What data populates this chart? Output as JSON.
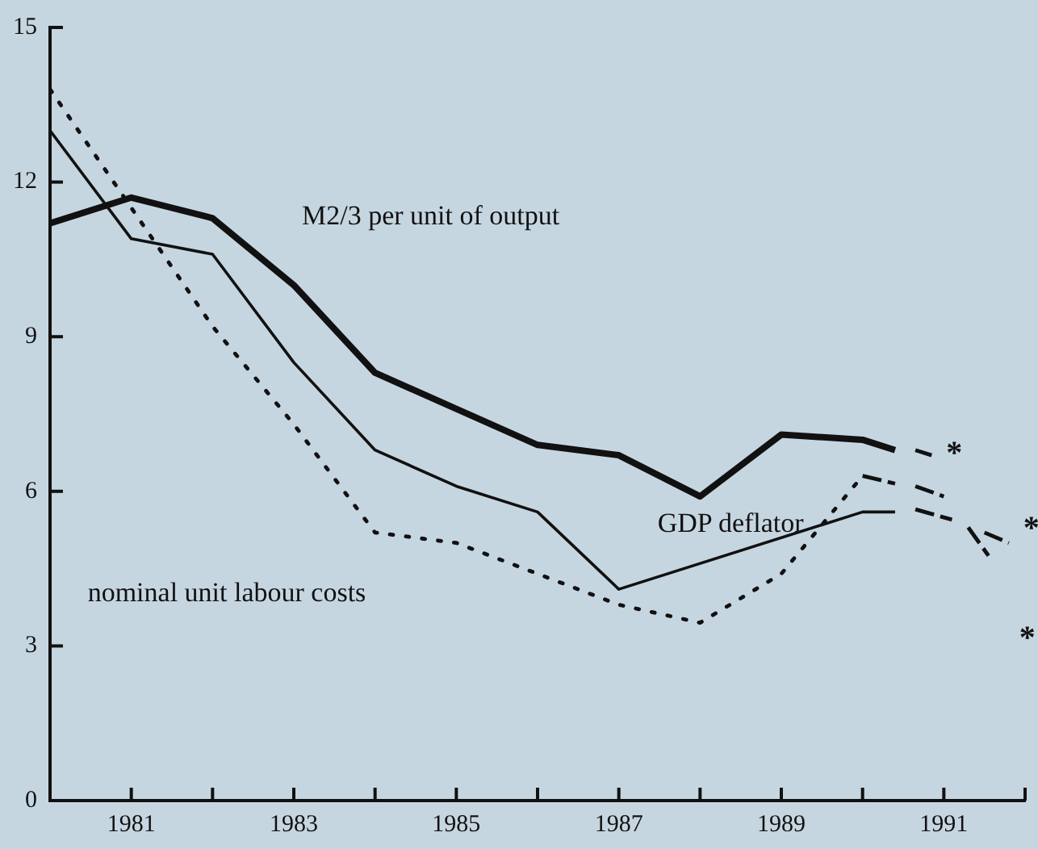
{
  "chart_data": {
    "type": "line",
    "xlim": [
      1980,
      1992
    ],
    "xticks": [
      {
        "value": 1981,
        "label": "1981"
      },
      {
        "value": 1982,
        "label": null
      },
      {
        "value": 1983,
        "label": "1983"
      },
      {
        "value": 1984,
        "label": null
      },
      {
        "value": 1985,
        "label": "1985"
      },
      {
        "value": 1986,
        "label": null
      },
      {
        "value": 1987,
        "label": "1987"
      },
      {
        "value": 1988,
        "label": null
      },
      {
        "value": 1989,
        "label": "1989"
      },
      {
        "value": 1990,
        "label": null
      },
      {
        "value": 1991,
        "label": "1991"
      },
      {
        "value": 1992,
        "label": null
      }
    ],
    "ylim": [
      0,
      15
    ],
    "yticks": [
      0,
      3,
      6,
      9,
      12,
      15
    ],
    "grid": false,
    "legend": false,
    "marker": "none",
    "series": [
      {
        "name": "M2/3 per unit of output",
        "color": "#111111",
        "line_style": "solid",
        "x": [
          1980,
          1981,
          1982,
          1983,
          1984,
          1985,
          1986,
          1987,
          1988,
          1989,
          1990,
          1990.4
        ],
        "values": [
          11.2,
          11.7,
          11.3,
          10.0,
          8.3,
          7.6,
          6.9,
          6.7,
          5.9,
          7.1,
          7.0,
          6.8
        ]
      },
      {
        "name": "GDP deflator",
        "color": "#111111",
        "line_style": "solid",
        "x": [
          1980,
          1981,
          1982,
          1983,
          1984,
          1985,
          1986,
          1987,
          1990,
          1990.4
        ],
        "values": [
          13.0,
          10.9,
          10.6,
          8.5,
          6.8,
          6.1,
          5.6,
          4.1,
          5.6,
          5.6
        ]
      },
      {
        "name": "nominal unit labour costs",
        "color": "#111111",
        "line_style": "dotted",
        "x": [
          1980,
          1981,
          1982,
          1983,
          1984,
          1985,
          1986,
          1987,
          1988,
          1989,
          1990
        ],
        "values": [
          13.8,
          11.5,
          9.2,
          7.3,
          5.2,
          5.0,
          4.4,
          3.8,
          3.45,
          4.4,
          6.3
        ]
      },
      {
        "color": "#111111",
        "line_style": "dashed",
        "x": [
          1990.65,
          1990.85
        ],
        "values": [
          6.8,
          6.7
        ]
      },
      {
        "color": "#111111",
        "line_style": "dashed",
        "x": [
          1990,
          1990.4,
          1990.45,
          1990.65,
          1991.0,
          1991.1,
          1991.3,
          1991.55
        ],
        "values": [
          6.3,
          6.15,
          null,
          6.1,
          5.9,
          null,
          5.3,
          4.75
        ]
      },
      {
        "color": "#111111",
        "line_style": "dashed",
        "x": [
          1990.65,
          1991.1,
          1991.2,
          1991.5,
          1991.8
        ],
        "values": [
          5.65,
          5.45,
          null,
          5.2,
          5.0
        ]
      }
    ],
    "annotations": [
      "*",
      "*",
      "*"
    ]
  }
}
